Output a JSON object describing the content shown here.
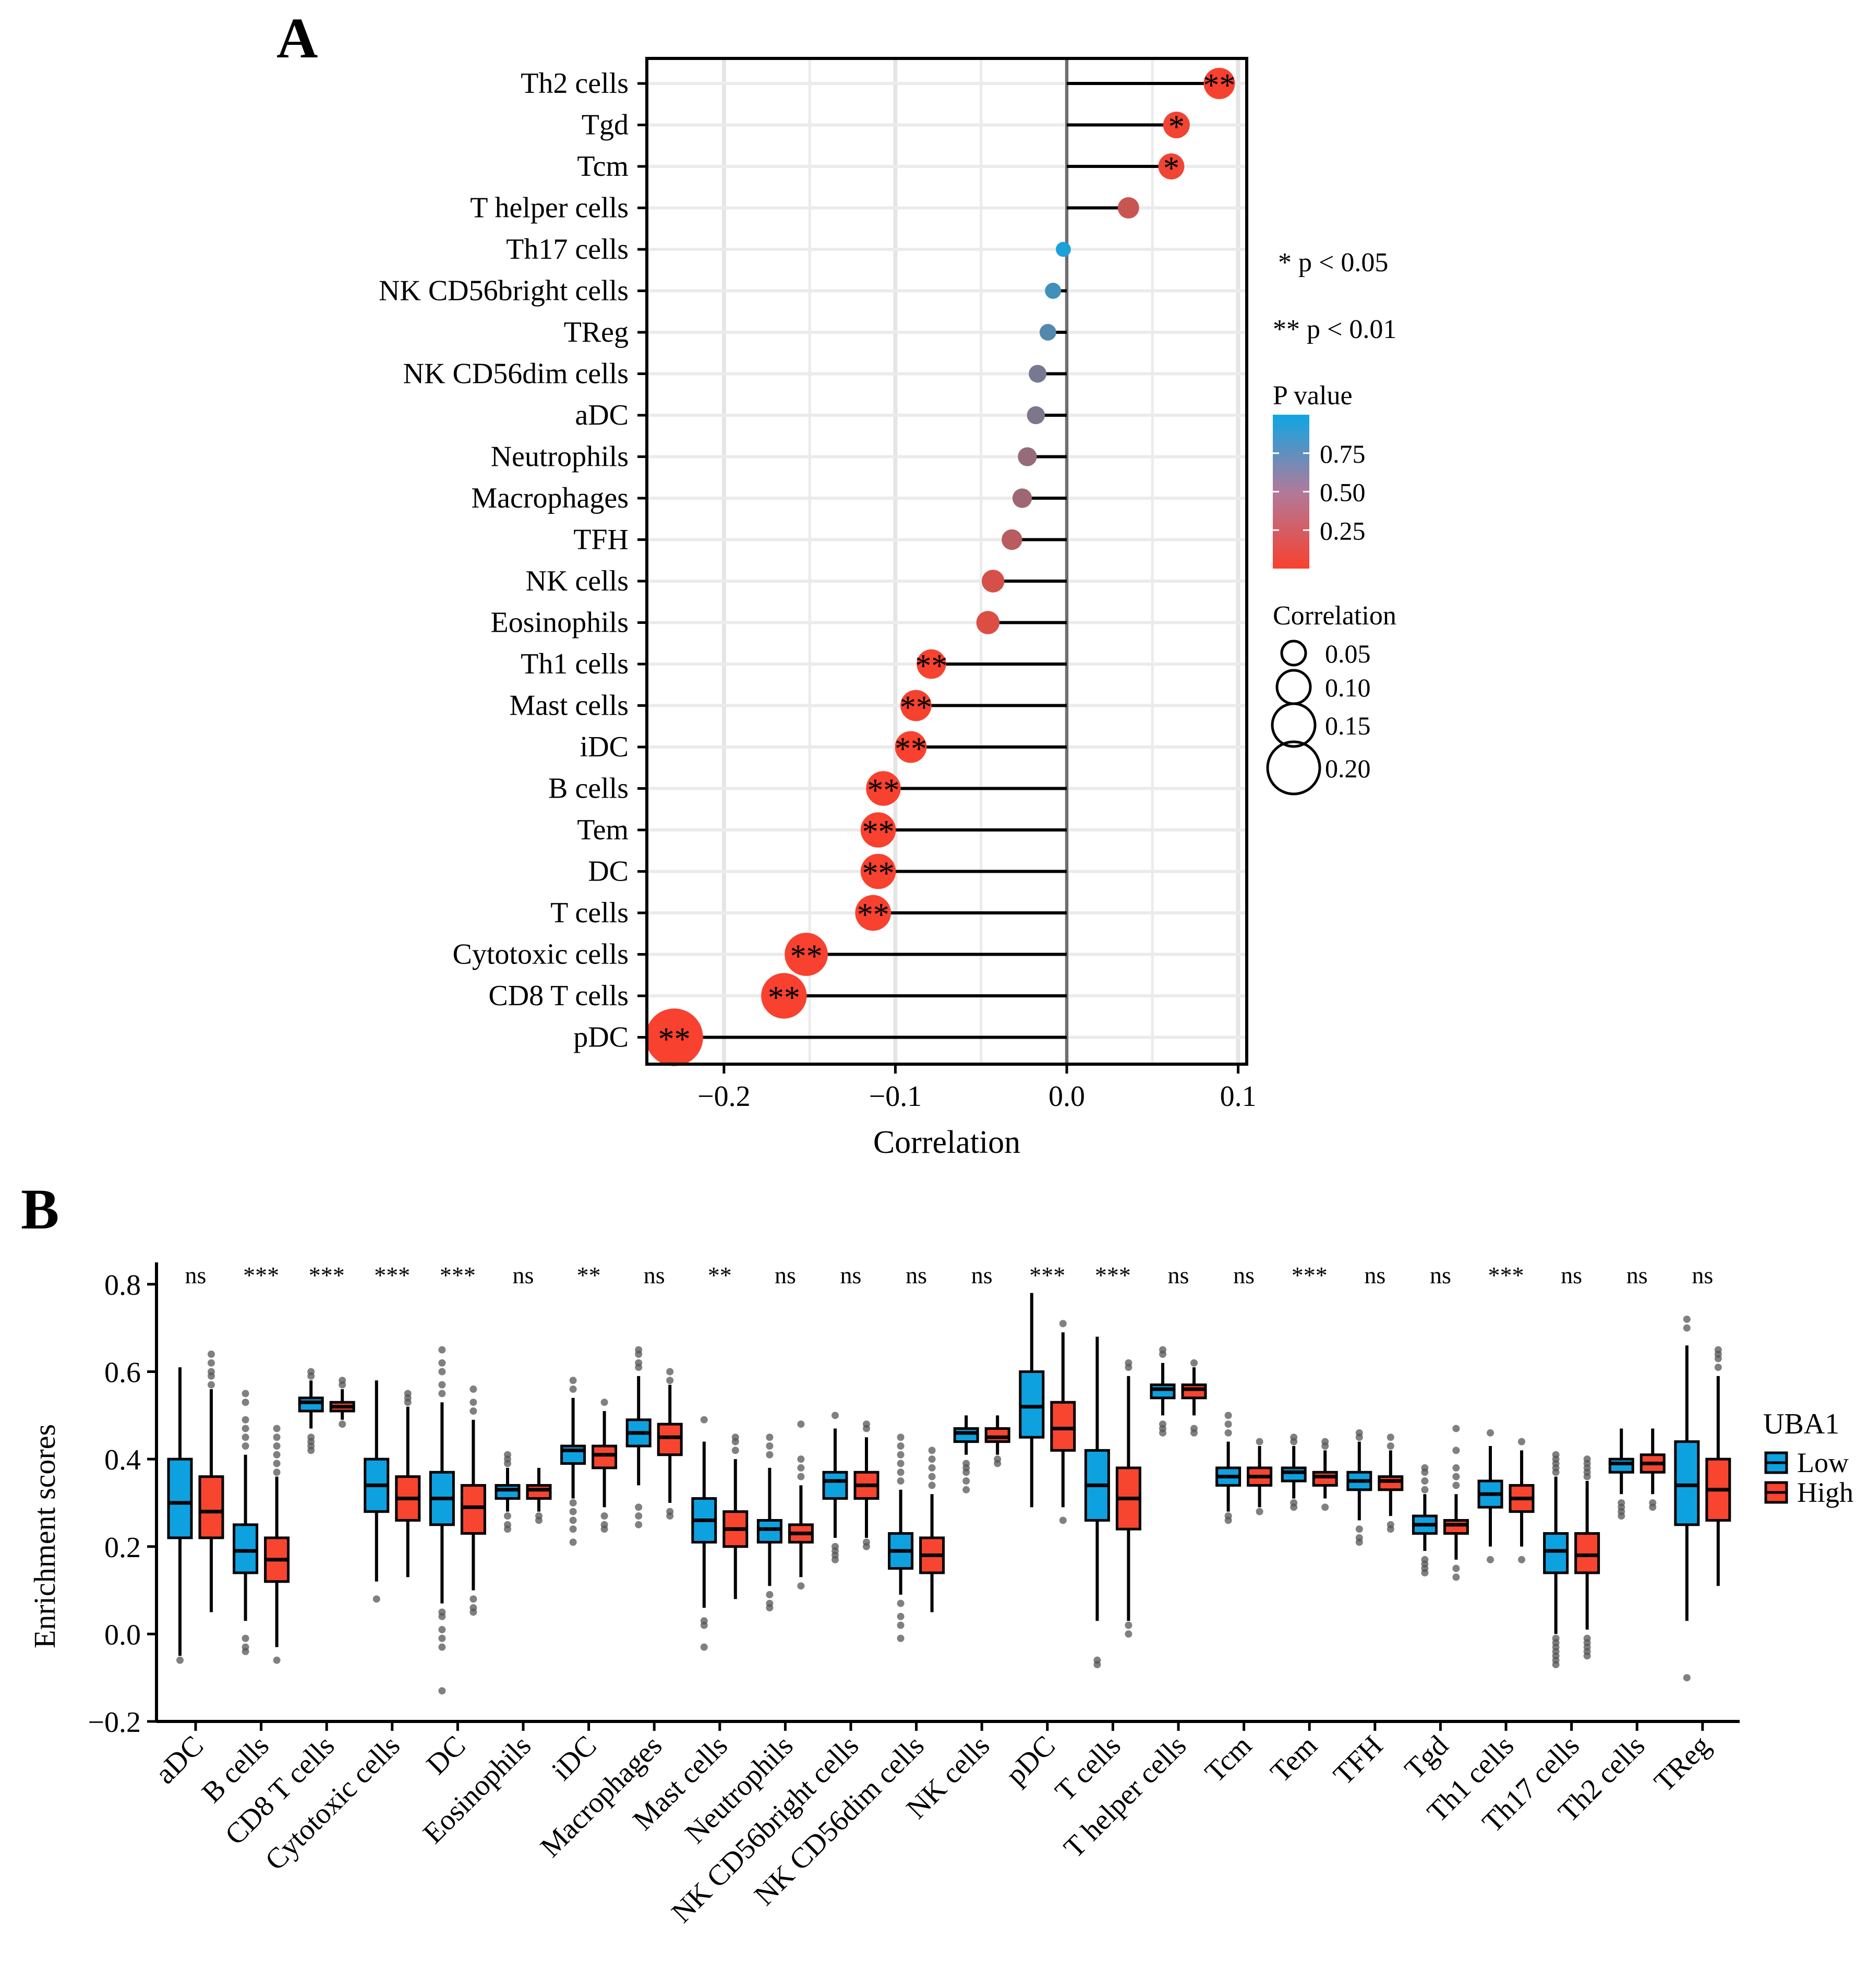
{
  "chart_data": [
    {
      "panel": "A",
      "type": "lollipop",
      "xlabel": "Correlation",
      "xlim": [
        -0.245,
        0.105
      ],
      "xticks": [
        -0.2,
        -0.1,
        0.0,
        0.1
      ],
      "xtick_labels": [
        "−0.2",
        "−0.1",
        "0.0",
        "0.1"
      ],
      "grid": true,
      "categories": [
        "Th2 cells",
        "Tgd",
        "Tcm",
        "T helper cells",
        "Th17 cells",
        "NK CD56bright cells",
        "TReg",
        "NK CD56dim cells",
        "aDC",
        "Neutrophils",
        "Macrophages",
        "TFH",
        "NK cells",
        "Eosinophils",
        "Th1 cells",
        "Mast cells",
        "iDC",
        "B cells",
        "Tem",
        "DC",
        "T cells",
        "Cytotoxic cells",
        "CD8 T cells",
        "pDC"
      ],
      "correlation": [
        0.089,
        0.064,
        0.061,
        0.036,
        -0.002,
        -0.008,
        -0.011,
        -0.017,
        -0.018,
        -0.023,
        -0.026,
        -0.032,
        -0.043,
        -0.046,
        -0.079,
        -0.088,
        -0.091,
        -0.107,
        -0.11,
        -0.11,
        -0.113,
        -0.152,
        -0.165,
        -0.229
      ],
      "p_value": [
        0.003,
        0.03,
        0.035,
        0.2,
        0.95,
        0.78,
        0.7,
        0.55,
        0.52,
        0.42,
        0.38,
        0.27,
        0.15,
        0.12,
        0.005,
        0.003,
        0.002,
        0.001,
        0.001,
        0.001,
        0.001,
        0.0001,
        0.0001,
        0.0001
      ],
      "significance": [
        "**",
        "*",
        "*",
        "",
        "",
        "",
        "",
        "",
        "",
        "",
        "",
        "",
        "",
        "",
        "**",
        "**",
        "**",
        "**",
        "**",
        "**",
        "**",
        "**",
        "**",
        "**"
      ],
      "annotations": [
        "* p < 0.05",
        "** p < 0.01"
      ],
      "color_legend": {
        "title": "P value",
        "ticks": [
          0.75,
          0.5,
          0.25
        ],
        "tick_labels": [
          "0.75",
          "0.50",
          "0.25"
        ],
        "low_color": "#F8412E",
        "high_color": "#0EA6E3"
      },
      "size_legend": {
        "title": "Correlation",
        "values": [
          0.05,
          0.1,
          0.15,
          0.2
        ],
        "labels": [
          "0.05",
          "0.10",
          "0.15",
          "0.20"
        ]
      }
    },
    {
      "panel": "B",
      "type": "boxplot",
      "ylabel": "Enrichment scores",
      "ylim": [
        -0.2,
        0.85
      ],
      "yticks": [
        -0.2,
        0.0,
        0.2,
        0.4,
        0.6,
        0.8
      ],
      "ytick_labels": [
        "−0.2",
        "0.0",
        "0.2",
        "0.4",
        "0.6",
        "0.8"
      ],
      "legend": {
        "title": "UBA1",
        "position": "right"
      },
      "series": [
        {
          "name": "Low",
          "color": "#0EA1E0"
        },
        {
          "name": "High",
          "color": "#F8452F"
        }
      ],
      "categories": [
        "aDC",
        "B cells",
        "CD8 T cells",
        "Cytotoxic cells",
        "DC",
        "Eosinophils",
        "iDC",
        "Macrophages",
        "Mast cells",
        "Neutrophils",
        "NK CD56bright cells",
        "NK CD56dim cells",
        "NK cells",
        "pDC",
        "T cells",
        "T helper cells",
        "Tcm",
        "Tem",
        "TFH",
        "Tgd",
        "Th1 cells",
        "Th17 cells",
        "Th2 cells",
        "TReg"
      ],
      "significance": [
        "ns",
        "***",
        "***",
        "***",
        "***",
        "ns",
        "**",
        "ns",
        "**",
        "ns",
        "ns",
        "ns",
        "ns",
        "***",
        "***",
        "ns",
        "ns",
        "***",
        "ns",
        "ns",
        "***",
        "ns",
        "ns",
        "ns"
      ],
      "low": [
        {
          "min": -0.05,
          "q1": 0.22,
          "median": 0.3,
          "q3": 0.4,
          "max": 0.61,
          "outliers": [
            -0.06
          ]
        },
        {
          "min": 0.03,
          "q1": 0.14,
          "median": 0.19,
          "q3": 0.25,
          "max": 0.41,
          "outliers": [
            0.43,
            0.45,
            0.47,
            0.49,
            0.53,
            0.55,
            -0.01,
            -0.03,
            -0.04
          ]
        },
        {
          "min": 0.47,
          "q1": 0.51,
          "median": 0.53,
          "q3": 0.54,
          "max": 0.58,
          "outliers": [
            0.6,
            0.59,
            0.45,
            0.44,
            0.43,
            0.42
          ]
        },
        {
          "min": 0.12,
          "q1": 0.28,
          "median": 0.34,
          "q3": 0.4,
          "max": 0.58,
          "outliers": [
            0.08
          ]
        },
        {
          "min": 0.07,
          "q1": 0.25,
          "median": 0.31,
          "q3": 0.37,
          "max": 0.53,
          "outliers": [
            0.55,
            0.57,
            0.6,
            0.62,
            0.65,
            0.05,
            0.04,
            0.01,
            -0.01,
            -0.03,
            -0.13
          ]
        },
        {
          "min": 0.28,
          "q1": 0.31,
          "median": 0.33,
          "q3": 0.34,
          "max": 0.38,
          "outliers": [
            0.39,
            0.4,
            0.41,
            0.27,
            0.25,
            0.24
          ]
        },
        {
          "min": 0.31,
          "q1": 0.39,
          "median": 0.42,
          "q3": 0.43,
          "max": 0.54,
          "outliers": [
            0.56,
            0.58,
            0.3,
            0.28,
            0.26,
            0.24,
            0.21
          ]
        },
        {
          "min": 0.34,
          "q1": 0.43,
          "median": 0.46,
          "q3": 0.49,
          "max": 0.59,
          "outliers": [
            0.61,
            0.62,
            0.64,
            0.65,
            0.29,
            0.27,
            0.25
          ]
        },
        {
          "min": 0.06,
          "q1": 0.21,
          "median": 0.26,
          "q3": 0.31,
          "max": 0.44,
          "outliers": [
            0.49,
            0.03,
            0.02,
            -0.03
          ]
        },
        {
          "min": 0.11,
          "q1": 0.21,
          "median": 0.24,
          "q3": 0.26,
          "max": 0.38,
          "outliers": [
            0.41,
            0.43,
            0.45,
            0.09,
            0.07,
            0.06
          ]
        },
        {
          "min": 0.22,
          "q1": 0.31,
          "median": 0.35,
          "q3": 0.37,
          "max": 0.47,
          "outliers": [
            0.5,
            0.2,
            0.19,
            0.18,
            0.17
          ]
        },
        {
          "min": 0.09,
          "q1": 0.15,
          "median": 0.19,
          "q3": 0.23,
          "max": 0.33,
          "outliers": [
            0.35,
            0.37,
            0.39,
            0.41,
            0.43,
            0.45,
            0.07,
            0.04,
            0.02,
            -0.01
          ]
        },
        {
          "min": 0.41,
          "q1": 0.44,
          "median": 0.46,
          "q3": 0.47,
          "max": 0.5,
          "outliers": [
            0.39,
            0.38,
            0.37,
            0.35,
            0.33
          ]
        },
        {
          "min": 0.29,
          "q1": 0.45,
          "median": 0.52,
          "q3": 0.6,
          "max": 0.78,
          "outliers": []
        },
        {
          "min": 0.03,
          "q1": 0.26,
          "median": 0.34,
          "q3": 0.42,
          "max": 0.68,
          "outliers": [
            -0.06,
            -0.07
          ]
        },
        {
          "min": 0.5,
          "q1": 0.54,
          "median": 0.56,
          "q3": 0.57,
          "max": 0.62,
          "outliers": [
            0.64,
            0.65,
            0.48,
            0.47,
            0.46
          ]
        },
        {
          "min": 0.28,
          "q1": 0.34,
          "median": 0.36,
          "q3": 0.38,
          "max": 0.44,
          "outliers": [
            0.46,
            0.48,
            0.5,
            0.26,
            0.27
          ]
        },
        {
          "min": 0.31,
          "q1": 0.35,
          "median": 0.37,
          "q3": 0.38,
          "max": 0.43,
          "outliers": [
            0.44,
            0.45,
            0.29,
            0.3
          ]
        },
        {
          "min": 0.26,
          "q1": 0.33,
          "median": 0.35,
          "q3": 0.37,
          "max": 0.44,
          "outliers": [
            0.45,
            0.46,
            0.24,
            0.22,
            0.21
          ]
        },
        {
          "min": 0.19,
          "q1": 0.23,
          "median": 0.25,
          "q3": 0.27,
          "max": 0.32,
          "outliers": [
            0.33,
            0.35,
            0.37,
            0.38,
            0.17,
            0.16,
            0.15,
            0.14
          ]
        },
        {
          "min": 0.2,
          "q1": 0.29,
          "median": 0.32,
          "q3": 0.35,
          "max": 0.43,
          "outliers": [
            0.46,
            0.17
          ]
        },
        {
          "min": 0.0,
          "q1": 0.14,
          "median": 0.19,
          "q3": 0.23,
          "max": 0.36,
          "outliers": [
            0.37,
            0.38,
            0.39,
            0.4,
            0.41,
            -0.01,
            -0.02,
            -0.03,
            -0.04,
            -0.05,
            -0.06,
            -0.07
          ]
        },
        {
          "min": 0.32,
          "q1": 0.37,
          "median": 0.39,
          "q3": 0.4,
          "max": 0.47,
          "outliers": [
            0.3,
            0.29,
            0.28,
            0.27
          ]
        },
        {
          "min": 0.03,
          "q1": 0.25,
          "median": 0.34,
          "q3": 0.44,
          "max": 0.66,
          "outliers": [
            0.7,
            0.72,
            -0.1
          ]
        }
      ],
      "high": [
        {
          "min": 0.05,
          "q1": 0.22,
          "median": 0.28,
          "q3": 0.36,
          "max": 0.56,
          "outliers": [
            0.57,
            0.59,
            0.6,
            0.62,
            0.64
          ]
        },
        {
          "min": -0.03,
          "q1": 0.12,
          "median": 0.17,
          "q3": 0.22,
          "max": 0.36,
          "outliers": [
            0.37,
            0.39,
            0.41,
            0.43,
            0.45,
            0.47,
            -0.06
          ]
        },
        {
          "min": 0.49,
          "q1": 0.51,
          "median": 0.52,
          "q3": 0.53,
          "max": 0.56,
          "outliers": [
            0.57,
            0.58,
            0.48
          ]
        },
        {
          "min": 0.13,
          "q1": 0.26,
          "median": 0.31,
          "q3": 0.36,
          "max": 0.52,
          "outliers": [
            0.53,
            0.54,
            0.55
          ]
        },
        {
          "min": 0.1,
          "q1": 0.23,
          "median": 0.29,
          "q3": 0.34,
          "max": 0.49,
          "outliers": [
            0.51,
            0.53,
            0.56,
            0.08,
            0.06,
            0.05
          ]
        },
        {
          "min": 0.28,
          "q1": 0.31,
          "median": 0.33,
          "q3": 0.34,
          "max": 0.38,
          "outliers": [
            0.27,
            0.26
          ]
        },
        {
          "min": 0.29,
          "q1": 0.38,
          "median": 0.41,
          "q3": 0.43,
          "max": 0.51,
          "outliers": [
            0.53,
            0.27,
            0.25,
            0.24
          ]
        },
        {
          "min": 0.3,
          "q1": 0.41,
          "median": 0.45,
          "q3": 0.48,
          "max": 0.57,
          "outliers": [
            0.58,
            0.6,
            0.28,
            0.27
          ]
        },
        {
          "min": 0.08,
          "q1": 0.2,
          "median": 0.24,
          "q3": 0.28,
          "max": 0.4,
          "outliers": [
            0.42,
            0.44,
            0.45
          ]
        },
        {
          "min": 0.13,
          "q1": 0.21,
          "median": 0.23,
          "q3": 0.25,
          "max": 0.34,
          "outliers": [
            0.36,
            0.38,
            0.4,
            0.48,
            0.11
          ]
        },
        {
          "min": 0.22,
          "q1": 0.31,
          "median": 0.34,
          "q3": 0.37,
          "max": 0.45,
          "outliers": [
            0.47,
            0.48,
            0.21,
            0.2
          ]
        },
        {
          "min": 0.05,
          "q1": 0.14,
          "median": 0.18,
          "q3": 0.22,
          "max": 0.32,
          "outliers": [
            0.34,
            0.36,
            0.38,
            0.4,
            0.42
          ]
        },
        {
          "min": 0.41,
          "q1": 0.44,
          "median": 0.45,
          "q3": 0.47,
          "max": 0.5,
          "outliers": [
            0.39,
            0.4
          ]
        },
        {
          "min": 0.29,
          "q1": 0.42,
          "median": 0.47,
          "q3": 0.53,
          "max": 0.69,
          "outliers": [
            0.71,
            0.26
          ]
        },
        {
          "min": 0.03,
          "q1": 0.24,
          "median": 0.31,
          "q3": 0.38,
          "max": 0.59,
          "outliers": [
            0.61,
            0.62,
            0.02,
            0.0
          ]
        },
        {
          "min": 0.5,
          "q1": 0.54,
          "median": 0.56,
          "q3": 0.57,
          "max": 0.61,
          "outliers": [
            0.62,
            0.47,
            0.46
          ]
        },
        {
          "min": 0.29,
          "q1": 0.34,
          "median": 0.36,
          "q3": 0.38,
          "max": 0.43,
          "outliers": [
            0.44,
            0.28
          ]
        },
        {
          "min": 0.31,
          "q1": 0.34,
          "median": 0.36,
          "q3": 0.37,
          "max": 0.42,
          "outliers": [
            0.43,
            0.44,
            0.29
          ]
        },
        {
          "min": 0.27,
          "q1": 0.33,
          "median": 0.35,
          "q3": 0.36,
          "max": 0.42,
          "outliers": [
            0.43,
            0.45,
            0.25,
            0.24
          ]
        },
        {
          "min": 0.17,
          "q1": 0.23,
          "median": 0.25,
          "q3": 0.26,
          "max": 0.32,
          "outliers": [
            0.34,
            0.36,
            0.38,
            0.42,
            0.47,
            0.15,
            0.13
          ]
        },
        {
          "min": 0.2,
          "q1": 0.28,
          "median": 0.31,
          "q3": 0.34,
          "max": 0.42,
          "outliers": [
            0.44,
            0.17
          ]
        },
        {
          "min": 0.01,
          "q1": 0.14,
          "median": 0.18,
          "q3": 0.23,
          "max": 0.35,
          "outliers": [
            0.36,
            0.37,
            0.38,
            0.39,
            0.4,
            -0.01,
            -0.02,
            -0.03,
            -0.04,
            -0.05
          ]
        },
        {
          "min": 0.32,
          "q1": 0.37,
          "median": 0.39,
          "q3": 0.41,
          "max": 0.47,
          "outliers": [
            0.3,
            0.29
          ]
        },
        {
          "min": 0.11,
          "q1": 0.26,
          "median": 0.33,
          "q3": 0.4,
          "max": 0.59,
          "outliers": [
            0.61,
            0.63,
            0.64,
            0.65
          ]
        }
      ]
    }
  ],
  "labels": {
    "panel_a": "A",
    "panel_b": "B",
    "legend_b_low": "Low",
    "legend_b_high": "High"
  }
}
